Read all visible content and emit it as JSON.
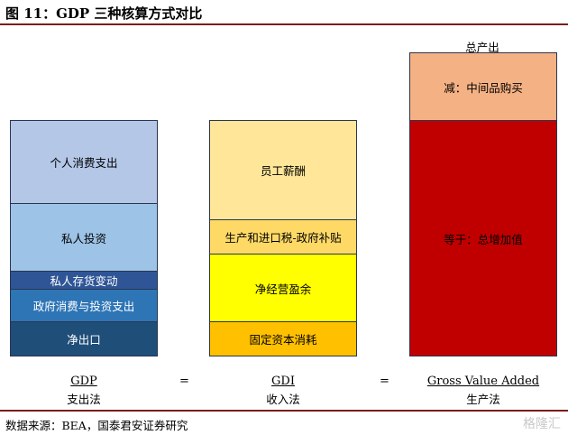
{
  "title": "图 11：GDP 三种核算方式对比",
  "columns": [
    {
      "blocks": [
        {
          "label": "个人消费支出",
          "color": "#b4c7e7"
        },
        {
          "label": "私人投资",
          "color": "#9dc3e6"
        },
        {
          "label": "私人存货变动",
          "color": "#2f5597"
        },
        {
          "label": "政府消费与投资支出",
          "color": "#2e75b6"
        },
        {
          "label": "净出口",
          "color": "#1f4e79"
        }
      ],
      "name": "GDP",
      "method": "支出法"
    },
    {
      "blocks": [
        {
          "label": "员工薪酬",
          "color": "#ffe699"
        },
        {
          "label": "生产和进口税-政府补贴",
          "color": "#ffd966"
        },
        {
          "label": "净经营盈余",
          "color": "#ffff00"
        },
        {
          "label": "固定资本消耗",
          "color": "#ffc000"
        }
      ],
      "name": "GDI",
      "method": "收入法"
    },
    {
      "top_label": "总产出",
      "blocks": [
        {
          "label": "减：中间品购买",
          "color": "#f4b183"
        },
        {
          "label": "等于：总增加值",
          "color": "#c00000"
        }
      ],
      "name": "Gross Value Added",
      "method": "生产法"
    }
  ],
  "equals": [
    "=",
    "="
  ],
  "source": "数据来源：BEA，国泰君安证券研究",
  "watermark": "格隆汇"
}
